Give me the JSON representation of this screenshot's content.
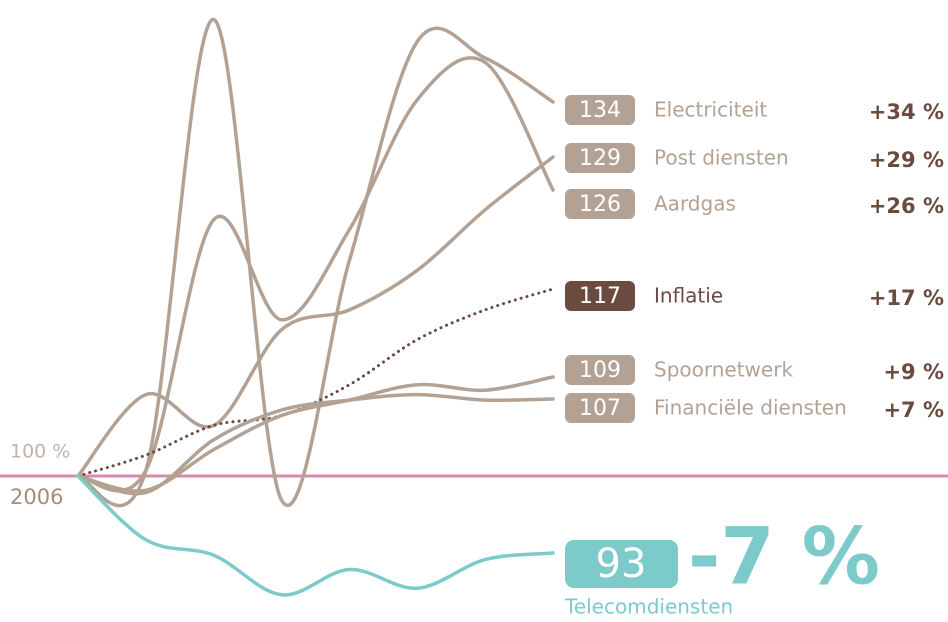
{
  "chart_data": {
    "type": "line",
    "categories": [
      "2006",
      null,
      null,
      null,
      null,
      null,
      null,
      null
    ],
    "ylim": [
      86,
      143
    ],
    "baseline": {
      "value": 100,
      "label": "100 %"
    },
    "series": [
      {
        "name": "Electriciteit",
        "color": "#b3a294",
        "values": [
          100,
          100.5,
          141.5,
          97.8,
          119.6,
          139.5,
          138,
          134
        ],
        "change": "+34 %"
      },
      {
        "name": "Post diensten",
        "color": "#b3a294",
        "values": [
          100,
          107.4,
          104.6,
          113.3,
          115.1,
          118.7,
          124.2,
          129
        ],
        "change": "+29 %"
      },
      {
        "name": "Aardgas",
        "color": "#b3a294",
        "values": [
          100,
          100.5,
          123.3,
          114.2,
          122.4,
          134.2,
          137.6,
          126
        ],
        "change": "+26 %"
      },
      {
        "name": "Inflatie",
        "color": "#6b4a40",
        "values": [
          100,
          101.9,
          104.6,
          105.5,
          108.3,
          112.4,
          115.1,
          117
        ],
        "change": "+17 %",
        "dotted": true
      },
      {
        "name": "Spoornetwerk",
        "color": "#b3a294",
        "values": [
          100,
          98.7,
          102.4,
          105.5,
          106.9,
          108.3,
          107.8,
          109
        ],
        "change": "+9 %"
      },
      {
        "name": "Financiële diensten",
        "color": "#b3a294",
        "values": [
          100,
          98.5,
          103.3,
          106,
          106.9,
          107.4,
          106.9,
          107
        ],
        "change": "+7 %"
      },
      {
        "name": "Telecomdiensten",
        "color": "#7ccaca",
        "values": [
          100,
          94.2,
          92.8,
          89.2,
          91.5,
          89.8,
          92.4,
          93
        ],
        "change": "-7 %",
        "highlight": true
      }
    ]
  }
}
